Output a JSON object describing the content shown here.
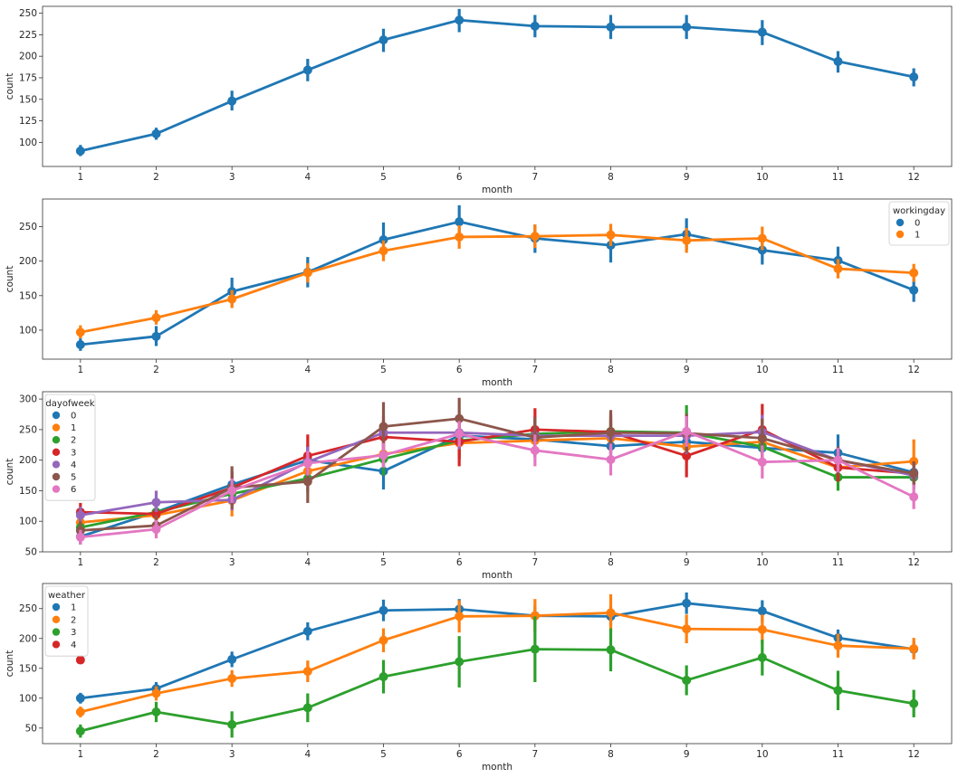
{
  "chart_data": [
    {
      "type": "line",
      "xlabel": "month",
      "ylabel": "count",
      "categories": [
        "1",
        "2",
        "3",
        "4",
        "5",
        "6",
        "7",
        "8",
        "9",
        "10",
        "11",
        "12"
      ],
      "ylim": [
        72,
        258
      ],
      "yticks": [
        100,
        125,
        150,
        175,
        200,
        225,
        250
      ],
      "legend": null,
      "series": [
        {
          "name": "",
          "color": "#1f77b4",
          "values": [
            90,
            110,
            148,
            184,
            219,
            242,
            235,
            234,
            234,
            228,
            194,
            176
          ],
          "ci": [
            [
              84,
              97
            ],
            [
              103,
              117
            ],
            [
              137,
              160
            ],
            [
              171,
              197
            ],
            [
              205,
              232
            ],
            [
              228,
              255
            ],
            [
              222,
              248
            ],
            [
              220,
              248
            ],
            [
              220,
              248
            ],
            [
              213,
              242
            ],
            [
              181,
              206
            ],
            [
              165,
              186
            ]
          ]
        }
      ]
    },
    {
      "type": "line",
      "xlabel": "month",
      "ylabel": "count",
      "categories": [
        "1",
        "2",
        "3",
        "4",
        "5",
        "6",
        "7",
        "8",
        "9",
        "10",
        "11",
        "12"
      ],
      "ylim": [
        58,
        290
      ],
      "yticks": [
        100,
        150,
        200,
        250
      ],
      "legend": {
        "title": "workingday",
        "placement": "upper right"
      },
      "series": [
        {
          "name": "0",
          "color": "#1f77b4",
          "values": [
            79,
            91,
            156,
            184,
            231,
            257,
            233,
            223,
            239,
            216,
            201,
            158
          ],
          "ci": [
            [
              70,
              88
            ],
            [
              77,
              106
            ],
            [
              136,
              176
            ],
            [
              162,
              206
            ],
            [
              206,
              256
            ],
            [
              233,
              281
            ],
            [
              212,
              253
            ],
            [
              198,
              248
            ],
            [
              216,
              262
            ],
            [
              195,
              237
            ],
            [
              181,
              221
            ],
            [
              141,
              175
            ]
          ]
        },
        {
          "name": "1",
          "color": "#ff7f0e",
          "values": [
            97,
            118,
            145,
            183,
            215,
            235,
            236,
            238,
            230,
            233,
            189,
            183
          ],
          "ci": [
            [
              88,
              107
            ],
            [
              108,
              129
            ],
            [
              132,
              158
            ],
            [
              169,
              197
            ],
            [
              200,
              230
            ],
            [
              218,
              252
            ],
            [
              219,
              253
            ],
            [
              222,
              254
            ],
            [
              212,
              248
            ],
            [
              216,
              250
            ],
            [
              175,
              203
            ],
            [
              170,
              196
            ]
          ]
        }
      ]
    },
    {
      "type": "line",
      "xlabel": "month",
      "ylabel": "count",
      "categories": [
        "1",
        "2",
        "3",
        "4",
        "5",
        "6",
        "7",
        "8",
        "9",
        "10",
        "11",
        "12"
      ],
      "ylim": [
        50,
        312
      ],
      "yticks": [
        50,
        100,
        150,
        200,
        250,
        300
      ],
      "legend": {
        "title": "dayofweek",
        "placement": "upper left"
      },
      "series": [
        {
          "name": "0",
          "color": "#1f77b4",
          "values": [
            75,
            115,
            160,
            200,
            182,
            240,
            234,
            223,
            230,
            220,
            212,
            180
          ],
          "ci": [
            [
              62,
              90
            ],
            [
              98,
              132
            ],
            [
              138,
              182
            ],
            [
              176,
              224
            ],
            [
              152,
              212
            ],
            [
              208,
              272
            ],
            [
              205,
              263
            ],
            [
              195,
              251
            ],
            [
              200,
              260
            ],
            [
              193,
              247
            ],
            [
              182,
              242
            ],
            [
              158,
              202
            ]
          ]
        },
        {
          "name": "1",
          "color": "#ff7f0e",
          "values": [
            98,
            110,
            134,
            182,
            210,
            228,
            232,
            236,
            222,
            230,
            188,
            198
          ],
          "ci": [
            [
              84,
              112
            ],
            [
              95,
              125
            ],
            [
              108,
              160
            ],
            [
              160,
              204
            ],
            [
              185,
              235
            ],
            [
              203,
              253
            ],
            [
              209,
              255
            ],
            [
              211,
              261
            ],
            [
              197,
              247
            ],
            [
              205,
              255
            ],
            [
              165,
              211
            ],
            [
              162,
              234
            ]
          ]
        },
        {
          "name": "2",
          "color": "#2ca02c",
          "values": [
            90,
            115,
            145,
            170,
            202,
            232,
            243,
            247,
            245,
            222,
            172,
            172
          ],
          "ci": [
            [
              76,
              104
            ],
            [
              100,
              130
            ],
            [
              125,
              165
            ],
            [
              148,
              192
            ],
            [
              175,
              229
            ],
            [
              202,
              262
            ],
            [
              215,
              271
            ],
            [
              222,
              272
            ],
            [
              200,
              290
            ],
            [
              195,
              249
            ],
            [
              150,
              194
            ],
            [
              152,
              192
            ]
          ]
        },
        {
          "name": "3",
          "color": "#d62728",
          "values": [
            115,
            112,
            155,
            207,
            238,
            230,
            250,
            246,
            207,
            250,
            188,
            178
          ],
          "ci": [
            [
              100,
              130
            ],
            [
              96,
              128
            ],
            [
              130,
              180
            ],
            [
              175,
              242
            ],
            [
              210,
              266
            ],
            [
              190,
              270
            ],
            [
              215,
              285
            ],
            [
              215,
              275
            ],
            [
              172,
              242
            ],
            [
              210,
              292
            ],
            [
              165,
              211
            ],
            [
              158,
              198
            ]
          ]
        },
        {
          "name": "4",
          "color": "#9467bd",
          "values": [
            110,
            131,
            135,
            197,
            245,
            245,
            240,
            240,
            240,
            246,
            200,
            175
          ],
          "ci": [
            [
              96,
              124
            ],
            [
              115,
              150
            ],
            [
              118,
              152
            ],
            [
              172,
              222
            ],
            [
              218,
              272
            ],
            [
              218,
              272
            ],
            [
              215,
              265
            ],
            [
              215,
              265
            ],
            [
              210,
              270
            ],
            [
              218,
              274
            ],
            [
              178,
              222
            ],
            [
              155,
              195
            ]
          ]
        },
        {
          "name": "5",
          "color": "#8c564b",
          "values": [
            85,
            93,
            155,
            165,
            255,
            268,
            237,
            245,
            244,
            236,
            200,
            178
          ],
          "ci": [
            [
              70,
              100
            ],
            [
              78,
              110
            ],
            [
              120,
              190
            ],
            [
              130,
              200
            ],
            [
              215,
              295
            ],
            [
              235,
              302
            ],
            [
              205,
              270
            ],
            [
              210,
              282
            ],
            [
              212,
              276
            ],
            [
              205,
              268
            ],
            [
              178,
              222
            ],
            [
              158,
              198
            ]
          ]
        },
        {
          "name": "6",
          "color": "#e377c2",
          "values": [
            74,
            87,
            150,
            195,
            208,
            243,
            216,
            201,
            247,
            197,
            200,
            140
          ],
          "ci": [
            [
              62,
              86
            ],
            [
              72,
              102
            ],
            [
              130,
              170
            ],
            [
              175,
              215
            ],
            [
              188,
              228
            ],
            [
              222,
              264
            ],
            [
              190,
              242
            ],
            [
              175,
              227
            ],
            [
              222,
              272
            ],
            [
              170,
              224
            ],
            [
              180,
              220
            ],
            [
              120,
              160
            ]
          ]
        }
      ]
    },
    {
      "type": "line",
      "xlabel": "month",
      "ylabel": "count",
      "categories": [
        "1",
        "2",
        "3",
        "4",
        "5",
        "6",
        "7",
        "8",
        "9",
        "10",
        "11",
        "12"
      ],
      "ylim": [
        24,
        292
      ],
      "yticks": [
        50,
        100,
        150,
        200,
        250
      ],
      "legend": {
        "title": "weather",
        "placement": "upper left"
      },
      "series": [
        {
          "name": "1",
          "color": "#1f77b4",
          "values": [
            100,
            116,
            165,
            212,
            247,
            249,
            238,
            237,
            259,
            246,
            201,
            182
          ],
          "ci": [
            [
              91,
              109
            ],
            [
              105,
              127
            ],
            [
              152,
              178
            ],
            [
              197,
              227
            ],
            [
              229,
              265
            ],
            [
              232,
              266
            ],
            [
              222,
              254
            ],
            [
              221,
              253
            ],
            [
              241,
              277
            ],
            [
              228,
              264
            ],
            [
              187,
              215
            ],
            [
              169,
              195
            ]
          ]
        },
        {
          "name": "2",
          "color": "#ff7f0e",
          "values": [
            77,
            108,
            133,
            145,
            197,
            237,
            238,
            243,
            216,
            215,
            188,
            183
          ],
          "ci": [
            [
              68,
              86
            ],
            [
              96,
              120
            ],
            [
              119,
              147
            ],
            [
              127,
              163
            ],
            [
              177,
              217
            ],
            [
              210,
              264
            ],
            [
              210,
              266
            ],
            [
              212,
              274
            ],
            [
              192,
              240
            ],
            [
              190,
              240
            ],
            [
              168,
              208
            ],
            [
              165,
              201
            ]
          ]
        },
        {
          "name": "3",
          "color": "#2ca02c",
          "values": [
            45,
            77,
            56,
            84,
            136,
            161,
            182,
            181,
            130,
            168,
            113,
            91
          ],
          "ci": [
            [
              34,
              56
            ],
            [
              60,
              94
            ],
            [
              34,
              78
            ],
            [
              60,
              108
            ],
            [
              108,
              164
            ],
            [
              118,
              204
            ],
            [
              127,
              237
            ],
            [
              145,
              217
            ],
            [
              105,
              155
            ],
            [
              138,
              198
            ],
            [
              80,
              146
            ],
            [
              68,
              114
            ]
          ]
        },
        {
          "name": "4",
          "color": "#d62728",
          "values": [
            164,
            null,
            null,
            null,
            null,
            null,
            null,
            null,
            null,
            null,
            null,
            null
          ],
          "ci": [
            null,
            null,
            null,
            null,
            null,
            null,
            null,
            null,
            null,
            null,
            null,
            null
          ]
        }
      ]
    }
  ]
}
